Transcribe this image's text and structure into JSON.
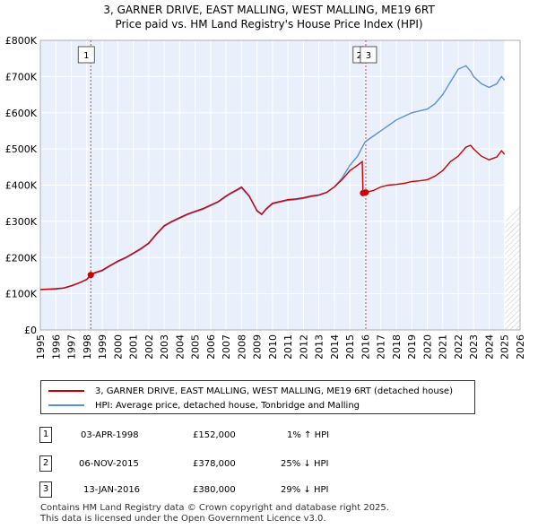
{
  "title_line1": "3, GARNER DRIVE, EAST MALLING, WEST MALLING, ME19 6RT",
  "title_line2": "Price paid vs. HM Land Registry's House Price Index (HPI)",
  "colors": {
    "price_line": "#cc0000",
    "hpi_line": "#5b8fd6",
    "grid": "#d9d9d9",
    "plot_bg": "#eaf0fb",
    "marker_line": "#d04040"
  },
  "legend": {
    "price_label": "3, GARNER DRIVE, EAST MALLING, WEST MALLING, ME19 6RT (detached house)",
    "hpi_label": "HPI: Average price, detached house, Tonbridge and Malling"
  },
  "transactions": [
    {
      "num": "1",
      "date": "03-APR-1998",
      "price": "£152,000",
      "hpi": "1% ↑ HPI"
    },
    {
      "num": "2",
      "date": "06-NOV-2015",
      "price": "£378,000",
      "hpi": "25% ↓ HPI"
    },
    {
      "num": "3",
      "date": "13-JAN-2016",
      "price": "£380,000",
      "hpi": "29% ↓ HPI"
    }
  ],
  "footer_line1": "Contains HM Land Registry data © Crown copyright and database right 2025.",
  "footer_line2": "This data is licensed under the Open Government Licence v3.0.",
  "chart_data": {
    "type": "line",
    "title": "3, GARNER DRIVE, EAST MALLING, WEST MALLING, ME19 6RT",
    "subtitle": "Price paid vs. HM Land Registry's House Price Index (HPI)",
    "xlabel": "",
    "ylabel": "",
    "xlim": [
      1995,
      2026
    ],
    "ylim": [
      0,
      800000
    ],
    "x_ticks": [
      1995,
      1996,
      1997,
      1998,
      1999,
      2000,
      2001,
      2002,
      2003,
      2004,
      2005,
      2006,
      2007,
      2008,
      2009,
      2010,
      2011,
      2012,
      2013,
      2014,
      2015,
      2016,
      2017,
      2018,
      2019,
      2020,
      2021,
      2022,
      2023,
      2024,
      2025,
      2026
    ],
    "y_ticks": [
      0,
      100000,
      200000,
      300000,
      400000,
      500000,
      600000,
      700000,
      800000
    ],
    "y_tick_labels": [
      "£0",
      "£100K",
      "£200K",
      "£300K",
      "£400K",
      "£500K",
      "£600K",
      "£700K",
      "£800K"
    ],
    "grid": true,
    "projection_start": 2025.0,
    "series": [
      {
        "name": "3, GARNER DRIVE, EAST MALLING, WEST MALLING, ME19 6RT (detached house)",
        "color": "#cc0000",
        "x": [
          1995.0,
          1995.5,
          1996.0,
          1996.5,
          1997.0,
          1997.5,
          1998.0,
          1998.26,
          1998.5,
          1999.0,
          1999.5,
          2000.0,
          2000.5,
          2001.0,
          2001.5,
          2002.0,
          2002.5,
          2003.0,
          2003.5,
          2004.0,
          2004.5,
          2005.0,
          2005.5,
          2006.0,
          2006.5,
          2007.0,
          2007.3,
          2007.6,
          2008.0,
          2008.5,
          2009.0,
          2009.3,
          2009.6,
          2010.0,
          2010.5,
          2011.0,
          2011.5,
          2012.0,
          2012.5,
          2013.0,
          2013.5,
          2014.0,
          2014.5,
          2015.0,
          2015.5,
          2015.8,
          2015.85,
          2016.0,
          2016.03,
          2016.5,
          2017.0,
          2017.5,
          2018.0,
          2018.5,
          2019.0,
          2019.5,
          2020.0,
          2020.5,
          2021.0,
          2021.5,
          2022.0,
          2022.5,
          2022.8,
          2023.0,
          2023.5,
          2024.0,
          2024.5,
          2024.8,
          2025.0
        ],
        "y": [
          112000,
          113000,
          114000,
          116000,
          122000,
          130000,
          140000,
          152000,
          158000,
          165000,
          178000,
          190000,
          200000,
          212000,
          225000,
          240000,
          265000,
          288000,
          300000,
          310000,
          320000,
          328000,
          335000,
          345000,
          355000,
          370000,
          378000,
          385000,
          395000,
          370000,
          330000,
          320000,
          335000,
          350000,
          355000,
          360000,
          362000,
          365000,
          370000,
          373000,
          380000,
          395000,
          415000,
          440000,
          455000,
          465000,
          378000,
          378000,
          380000,
          385000,
          395000,
          400000,
          402000,
          405000,
          410000,
          412000,
          415000,
          425000,
          440000,
          465000,
          480000,
          505000,
          510000,
          500000,
          480000,
          470000,
          478000,
          495000,
          485000
        ]
      },
      {
        "name": "HPI: Average price, detached house, Tonbridge and Malling",
        "color": "#5b8fd6",
        "x": [
          1995.0,
          1995.5,
          1996.0,
          1996.5,
          1997.0,
          1997.5,
          1998.0,
          1998.26,
          1998.5,
          1999.0,
          1999.5,
          2000.0,
          2000.5,
          2001.0,
          2001.5,
          2002.0,
          2002.5,
          2003.0,
          2003.5,
          2004.0,
          2004.5,
          2005.0,
          2005.5,
          2006.0,
          2006.5,
          2007.0,
          2007.3,
          2007.6,
          2008.0,
          2008.5,
          2009.0,
          2009.3,
          2009.6,
          2010.0,
          2010.5,
          2011.0,
          2011.5,
          2012.0,
          2012.5,
          2013.0,
          2013.5,
          2014.0,
          2014.5,
          2015.0,
          2015.5,
          2015.8,
          2016.0,
          2016.5,
          2017.0,
          2017.5,
          2018.0,
          2018.5,
          2019.0,
          2019.5,
          2020.0,
          2020.5,
          2021.0,
          2021.5,
          2022.0,
          2022.5,
          2022.8,
          2023.0,
          2023.5,
          2024.0,
          2024.5,
          2024.8,
          2025.0
        ],
        "y": [
          111000,
          112000,
          113000,
          115000,
          121000,
          129000,
          139000,
          150000,
          156000,
          163000,
          176000,
          188000,
          198000,
          210000,
          223000,
          238000,
          263000,
          286000,
          298000,
          308000,
          318000,
          326000,
          333000,
          343000,
          353000,
          368000,
          376000,
          383000,
          392000,
          368000,
          328000,
          318000,
          333000,
          348000,
          353000,
          358000,
          360000,
          363000,
          368000,
          372000,
          380000,
          395000,
          420000,
          455000,
          480000,
          505000,
          520000,
          535000,
          550000,
          565000,
          580000,
          590000,
          600000,
          605000,
          610000,
          625000,
          650000,
          685000,
          720000,
          730000,
          715000,
          700000,
          680000,
          670000,
          680000,
          700000,
          690000
        ]
      }
    ],
    "markers": [
      {
        "label": "1",
        "x": 1998.26,
        "y": 152000,
        "dashed_line": true
      },
      {
        "label": "2",
        "x": 2015.85,
        "y": 378000,
        "dashed_line": false
      },
      {
        "label": "3",
        "x": 2016.03,
        "y": 380000,
        "dashed_line": true
      }
    ]
  }
}
